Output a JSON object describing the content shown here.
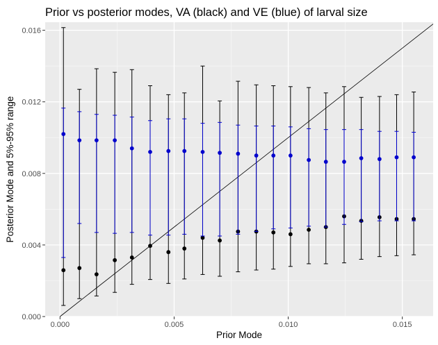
{
  "chart_data": {
    "type": "scatter",
    "title": "Prior vs posterior modes, VA (black) and VE (blue) of larval size",
    "xlabel": "Prior Mode",
    "ylabel": "Posterior Mode and 5%-95% range",
    "xlim": [
      -0.00065,
      0.01635
    ],
    "ylim": [
      0.0,
      0.01645
    ],
    "x_ticks": [
      0.0,
      0.005,
      0.01,
      0.015
    ],
    "x_tick_labels": [
      "0.000",
      "0.005",
      "0.010",
      "0.015"
    ],
    "y_ticks": [
      0.0,
      0.004,
      0.008,
      0.012,
      0.016
    ],
    "y_tick_labels": [
      "0.000",
      "0.004",
      "0.008",
      "0.012",
      "0.016"
    ],
    "grid": true,
    "reference_line": {
      "type": "identity",
      "from": [
        0.0,
        0.0
      ],
      "to": [
        0.01635,
        0.01635
      ]
    },
    "series": [
      {
        "name": "VA",
        "color": "#000000",
        "points": [
          {
            "x": 0.00015,
            "y": 0.00259,
            "lo": 0.00062,
            "hi": 0.01615
          },
          {
            "x": 0.00085,
            "y": 0.00271,
            "lo": 0.001,
            "hi": 0.0127
          },
          {
            "x": 0.0016,
            "y": 0.00236,
            "lo": 0.00115,
            "hi": 0.01385
          },
          {
            "x": 0.0024,
            "y": 0.00315,
            "lo": 0.00135,
            "hi": 0.01365
          },
          {
            "x": 0.00315,
            "y": 0.0033,
            "lo": 0.0018,
            "hi": 0.0138
          },
          {
            "x": 0.00395,
            "y": 0.00395,
            "lo": 0.00207,
            "hi": 0.0129
          },
          {
            "x": 0.00475,
            "y": 0.0036,
            "lo": 0.00185,
            "hi": 0.0124
          },
          {
            "x": 0.00545,
            "y": 0.0038,
            "lo": 0.0021,
            "hi": 0.0125
          },
          {
            "x": 0.00625,
            "y": 0.0044,
            "lo": 0.00235,
            "hi": 0.014
          },
          {
            "x": 0.007,
            "y": 0.00425,
            "lo": 0.00225,
            "hi": 0.01205
          },
          {
            "x": 0.0078,
            "y": 0.00475,
            "lo": 0.0025,
            "hi": 0.01315
          },
          {
            "x": 0.0086,
            "y": 0.00475,
            "lo": 0.0026,
            "hi": 0.01295
          },
          {
            "x": 0.00935,
            "y": 0.0047,
            "lo": 0.00265,
            "hi": 0.0129
          },
          {
            "x": 0.0101,
            "y": 0.0046,
            "lo": 0.0028,
            "hi": 0.01285
          },
          {
            "x": 0.0109,
            "y": 0.00485,
            "lo": 0.00295,
            "hi": 0.0128
          },
          {
            "x": 0.01165,
            "y": 0.005,
            "lo": 0.00295,
            "hi": 0.0125
          },
          {
            "x": 0.01245,
            "y": 0.0056,
            "lo": 0.003,
            "hi": 0.01285
          },
          {
            "x": 0.0132,
            "y": 0.00535,
            "lo": 0.0032,
            "hi": 0.01225
          },
          {
            "x": 0.014,
            "y": 0.00555,
            "lo": 0.00335,
            "hi": 0.0123
          },
          {
            "x": 0.01475,
            "y": 0.00545,
            "lo": 0.0034,
            "hi": 0.0124
          },
          {
            "x": 0.0155,
            "y": 0.00545,
            "lo": 0.00345,
            "hi": 0.01255
          }
        ]
      },
      {
        "name": "VE",
        "color": "#0000cd",
        "points": [
          {
            "x": 0.00015,
            "y": 0.0102,
            "lo": 0.0033,
            "hi": 0.01165
          },
          {
            "x": 0.00085,
            "y": 0.00985,
            "lo": 0.0052,
            "hi": 0.01145
          },
          {
            "x": 0.0016,
            "y": 0.00985,
            "lo": 0.0047,
            "hi": 0.0113
          },
          {
            "x": 0.0024,
            "y": 0.00985,
            "lo": 0.00465,
            "hi": 0.01125
          },
          {
            "x": 0.00315,
            "y": 0.0094,
            "lo": 0.0047,
            "hi": 0.01115
          },
          {
            "x": 0.00395,
            "y": 0.0092,
            "lo": 0.00455,
            "hi": 0.01095
          },
          {
            "x": 0.00475,
            "y": 0.00925,
            "lo": 0.00455,
            "hi": 0.01105
          },
          {
            "x": 0.00545,
            "y": 0.00925,
            "lo": 0.0046,
            "hi": 0.01105
          },
          {
            "x": 0.00625,
            "y": 0.0092,
            "lo": 0.0045,
            "hi": 0.0108
          },
          {
            "x": 0.007,
            "y": 0.00915,
            "lo": 0.0045,
            "hi": 0.01085
          },
          {
            "x": 0.0078,
            "y": 0.0091,
            "lo": 0.0046,
            "hi": 0.0107
          },
          {
            "x": 0.0086,
            "y": 0.009,
            "lo": 0.00475,
            "hi": 0.01065
          },
          {
            "x": 0.00935,
            "y": 0.009,
            "lo": 0.0049,
            "hi": 0.01065
          },
          {
            "x": 0.0101,
            "y": 0.009,
            "lo": 0.00495,
            "hi": 0.0106
          },
          {
            "x": 0.0109,
            "y": 0.00875,
            "lo": 0.00505,
            "hi": 0.0105
          },
          {
            "x": 0.01165,
            "y": 0.00865,
            "lo": 0.005,
            "hi": 0.01045
          },
          {
            "x": 0.01245,
            "y": 0.00865,
            "lo": 0.00515,
            "hi": 0.01045
          },
          {
            "x": 0.0132,
            "y": 0.00885,
            "lo": 0.0053,
            "hi": 0.01045
          },
          {
            "x": 0.014,
            "y": 0.0088,
            "lo": 0.00535,
            "hi": 0.01035
          },
          {
            "x": 0.01475,
            "y": 0.0089,
            "lo": 0.00535,
            "hi": 0.01035
          },
          {
            "x": 0.0155,
            "y": 0.0089,
            "lo": 0.00535,
            "hi": 0.0103
          }
        ]
      }
    ]
  }
}
